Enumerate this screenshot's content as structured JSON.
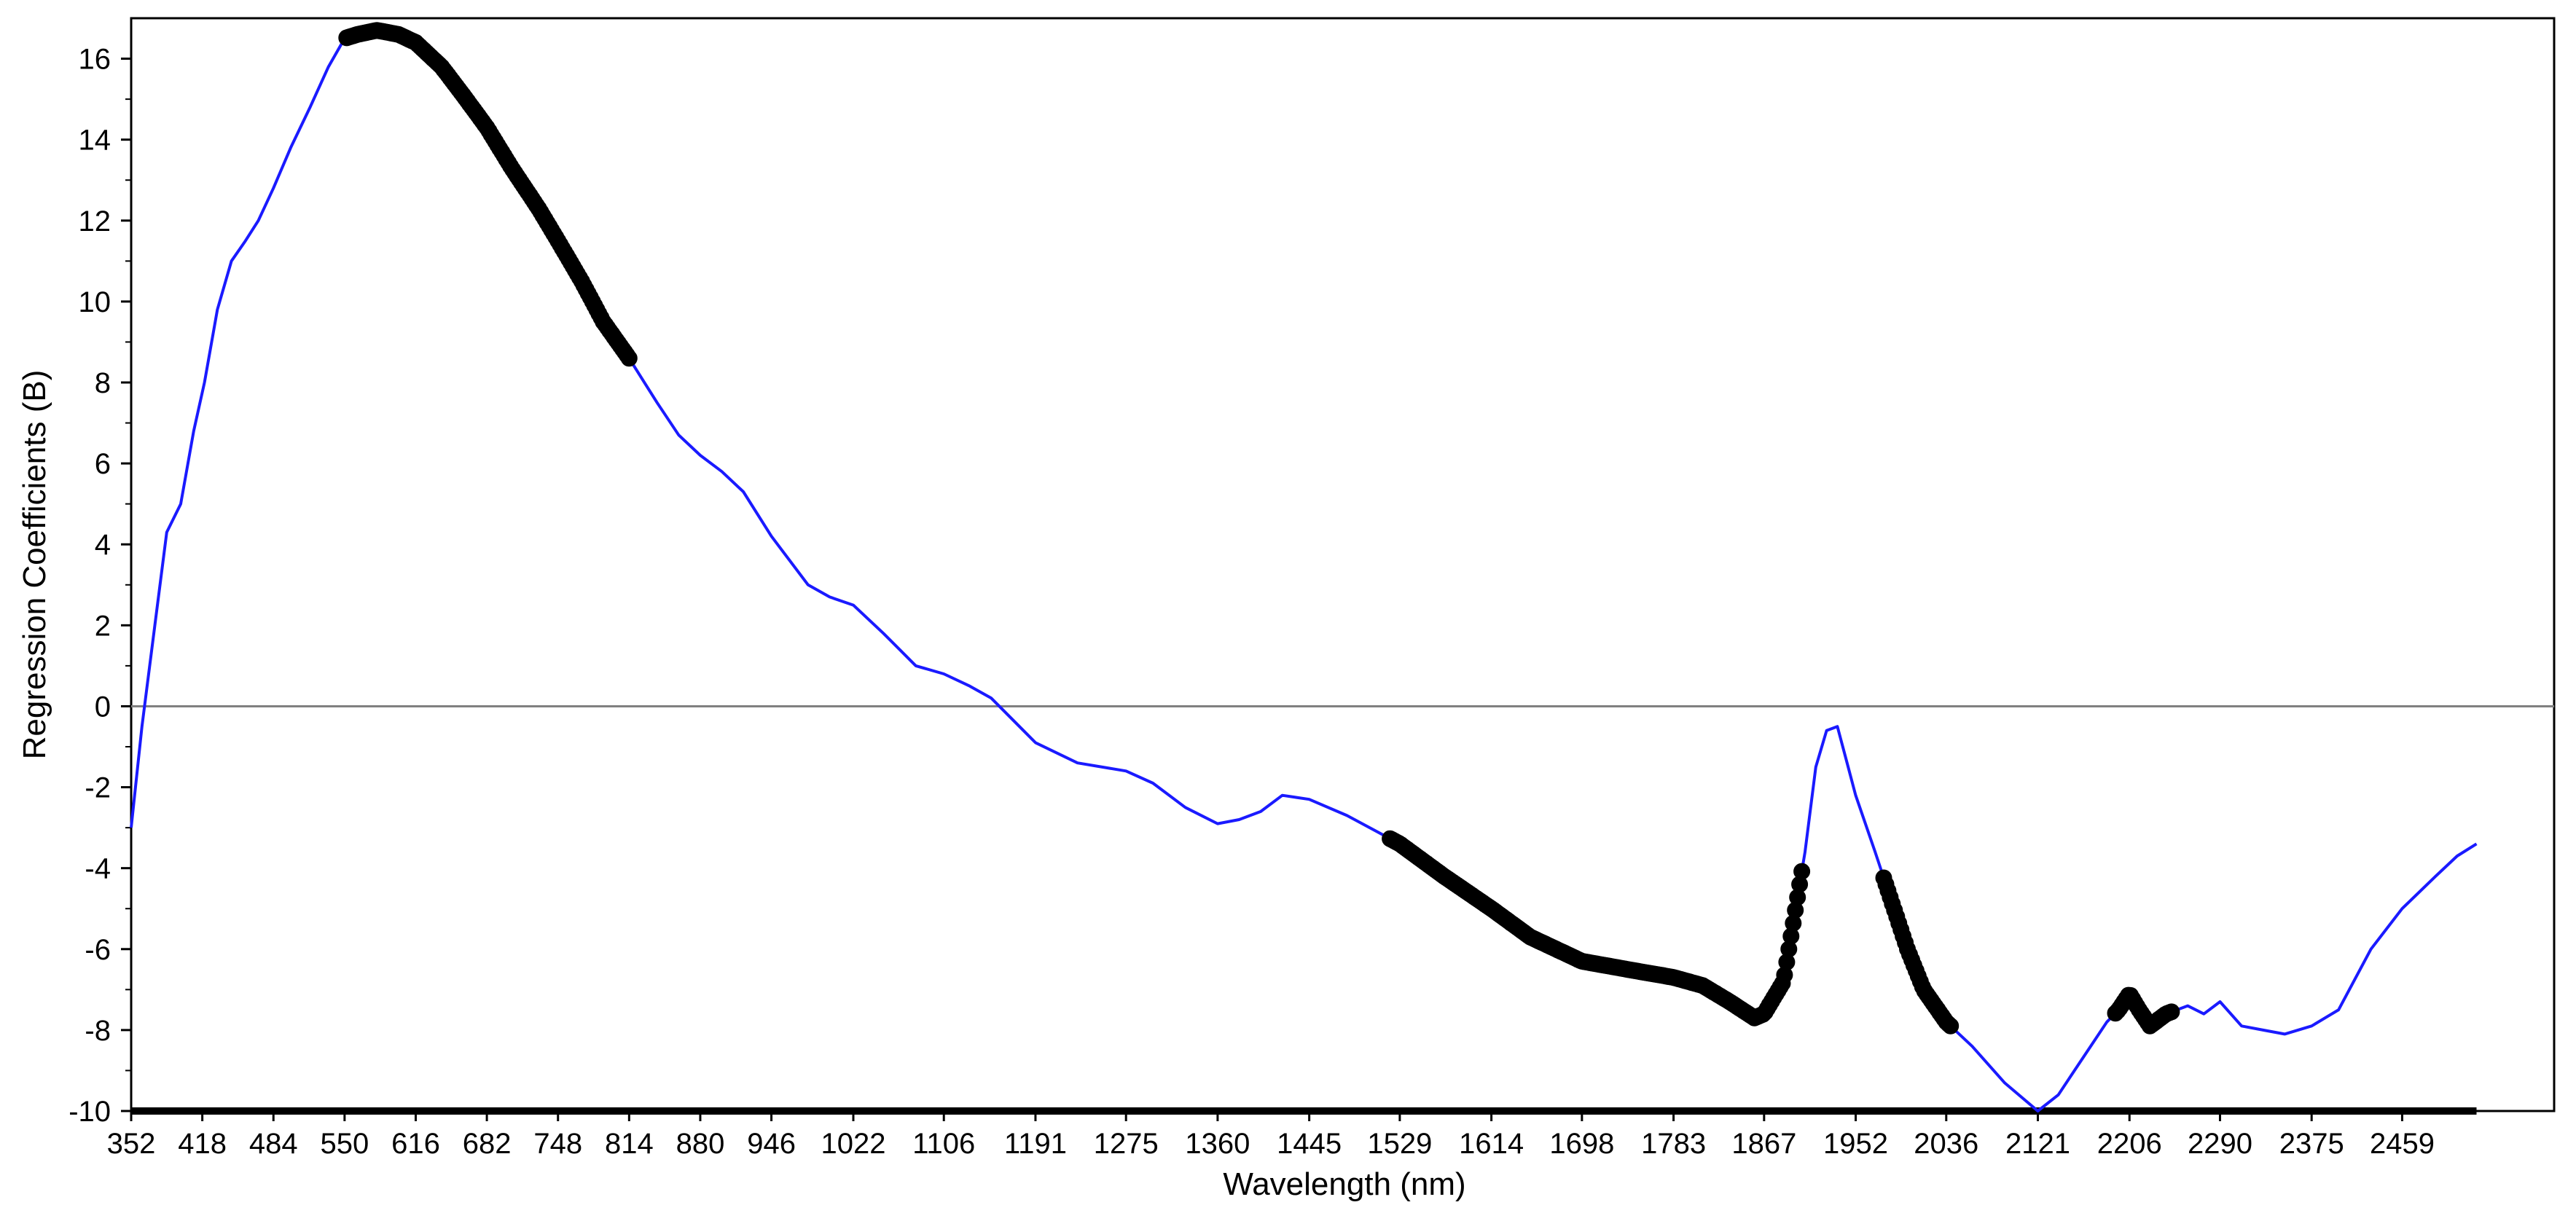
{
  "chart_data": {
    "type": "line",
    "title": "",
    "xlabel": "Wavelength (nm)",
    "ylabel": "Regression Coefficients (B)",
    "xlim": [
      352,
      2600
    ],
    "ylim": [
      -10,
      17
    ],
    "grid": false,
    "legend": "none",
    "x_ticks": [
      352,
      418,
      484,
      550,
      616,
      682,
      748,
      814,
      880,
      946,
      1022,
      1106,
      1191,
      1275,
      1360,
      1445,
      1529,
      1614,
      1698,
      1783,
      1867,
      1952,
      2036,
      2121,
      2206,
      2290,
      2375,
      2459
    ],
    "y_ticks": [
      16,
      14,
      12,
      10,
      8,
      6,
      4,
      2,
      0,
      -2,
      -4,
      -6,
      -8,
      -10
    ],
    "zero_line": 0,
    "colors": {
      "curve": "#1a1aff",
      "markers": "#000000",
      "axis": "#000000",
      "zero_line": "#808080"
    },
    "series": [
      {
        "values_x": [
          352,
          362,
          374,
          385,
          398,
          410,
          420,
          432,
          445,
          458,
          470,
          484,
          500,
          518,
          535,
          550,
          562,
          580,
          600,
          616,
          640,
          660,
          682,
          705,
          730,
          748,
          770,
          790,
          814,
          840,
          860,
          880,
          900,
          920,
          946,
          980,
          1000,
          1022,
          1050,
          1080,
          1106,
          1130,
          1150,
          1191,
          1230,
          1275,
          1300,
          1330,
          1360,
          1380,
          1400,
          1420,
          1445,
          1480,
          1529,
          1570,
          1614,
          1650,
          1698,
          1740,
          1783,
          1810,
          1835,
          1858,
          1867,
          1885,
          1895,
          1905,
          1915,
          1925,
          1935,
          1945,
          1952,
          1970,
          1985,
          2000,
          2015,
          2036,
          2060,
          2090,
          2121,
          2140,
          2155,
          2170,
          2185,
          2196,
          2206,
          2215,
          2225,
          2240,
          2260,
          2275,
          2290,
          2310,
          2330,
          2350,
          2375,
          2400,
          2430,
          2459,
          2490,
          2510,
          2528
        ],
        "values_y": [
          -3,
          -0.5,
          2,
          4.3,
          5,
          6.8,
          8,
          9.8,
          11,
          11.5,
          12,
          12.8,
          13.8,
          14.8,
          15.8,
          16.5,
          16.6,
          16.7,
          16.6,
          16.4,
          15.8,
          15.1,
          14.3,
          13.3,
          12.3,
          11.5,
          10.5,
          9.5,
          8.6,
          7.5,
          6.7,
          6.2,
          5.8,
          5.3,
          4.2,
          3.0,
          2.7,
          2.5,
          1.8,
          1.0,
          0.8,
          0.5,
          0.2,
          -0.9,
          -1.4,
          -1.6,
          -1.9,
          -2.5,
          -2.9,
          -2.8,
          -2.6,
          -2.2,
          -2.3,
          -2.7,
          -3.4,
          -4.2,
          -5.0,
          -5.7,
          -6.3,
          -6.5,
          -6.7,
          -6.9,
          -7.3,
          -7.7,
          -7.6,
          -6.8,
          -5.2,
          -3.6,
          -1.5,
          -0.6,
          -0.5,
          -1.5,
          -2.2,
          -3.6,
          -4.8,
          -6.0,
          -7.0,
          -7.8,
          -8.4,
          -9.3,
          -10.0,
          -9.6,
          -9.0,
          -8.4,
          -7.8,
          -7.5,
          -7.1,
          -7.5,
          -7.9,
          -7.6,
          -7.4,
          -7.6,
          -7.3,
          -7.9,
          -8.0,
          -8.1,
          -7.9,
          -7.5,
          -6.0,
          -5.0,
          -4.2,
          -3.7,
          -3.4
        ]
      }
    ],
    "highlighted_segments": [
      {
        "x": [
          552,
          814
        ]
      },
      {
        "x": [
          1520,
          1872
        ]
      },
      {
        "x": [
          1872,
          1902
        ]
      },
      {
        "x": [
          1978,
          2040
        ]
      },
      {
        "x": [
          2193,
          2245
        ]
      }
    ]
  }
}
